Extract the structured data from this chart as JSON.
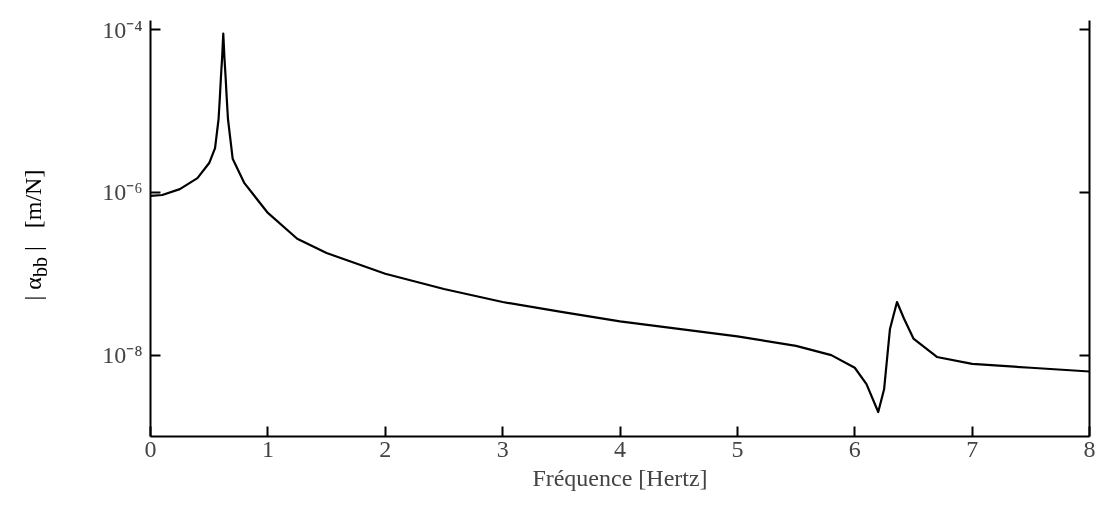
{
  "chart_data": {
    "type": "line",
    "xlabel": "Fréquence [Hertz]",
    "ylabel": "| α$_{bb}$ |   [m/N]",
    "log": "y",
    "grid": false,
    "marker": "none",
    "line_style": "solid",
    "xlim": [
      0,
      8
    ],
    "xticks": [
      0,
      1,
      2,
      3,
      4,
      5,
      6,
      7,
      8
    ],
    "ylim": [
      1e-09,
      0.00013
    ],
    "yticks": [
      {
        "value": 0.0001,
        "label": "10⁻⁴"
      },
      {
        "value": 1e-06,
        "label": "10⁻⁶"
      },
      {
        "value": 1e-08,
        "label": "10⁻⁸"
      }
    ],
    "series": [
      {
        "color": "#000000",
        "x": [
          0,
          0.1,
          0.25,
          0.4,
          0.5,
          0.55,
          0.58,
          0.59,
          0.6,
          0.61,
          0.62,
          0.63,
          0.64,
          0.65,
          0.66,
          0.7,
          0.8,
          1.0,
          1.25,
          1.5,
          2,
          2.5,
          3,
          3.5,
          4,
          4.5,
          5,
          5.5,
          5.8,
          6.0,
          6.1,
          6.2,
          6.25,
          6.3,
          6.36,
          6.42,
          6.5,
          6.7,
          7,
          7.5,
          8
        ],
        "values": [
          9.1e-07,
          9.3e-07,
          1.1e-06,
          1.5e-06,
          2.3e-06,
          3.5e-06,
          8e-06,
          1.4e-05,
          2.6e-05,
          4.5e-05,
          9e-05,
          4.5e-05,
          2.6e-05,
          1.4e-05,
          8e-06,
          2.6e-06,
          1.3e-06,
          5.6e-07,
          2.7e-07,
          1.8e-07,
          1e-07,
          6.5e-08,
          4.5e-08,
          3.4e-08,
          2.6e-08,
          2.1e-08,
          1.7e-08,
          1.3e-08,
          1e-08,
          7e-09,
          4.4e-09,
          2e-09,
          3.8e-09,
          2.1e-08,
          4.5e-08,
          2.8e-08,
          1.6e-08,
          9.5e-09,
          7.8e-09,
          7e-09,
          6.3e-09
        ]
      }
    ]
  }
}
